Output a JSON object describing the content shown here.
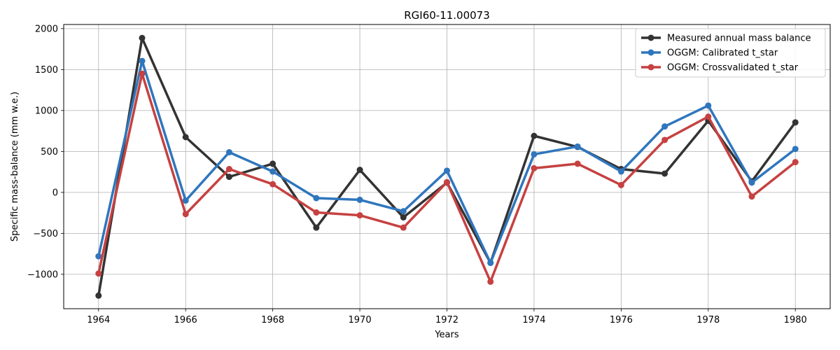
{
  "chart_data": {
    "type": "line",
    "title": "RGI60-11.00073",
    "xlabel": "Years",
    "ylabel": "Specific mass-balance (mm w.e.)",
    "x": [
      1964,
      1965,
      1966,
      1967,
      1968,
      1969,
      1970,
      1971,
      1972,
      1973,
      1974,
      1975,
      1976,
      1977,
      1978,
      1979,
      1980
    ],
    "xlim": [
      1963.2,
      1980.8
    ],
    "ylim": [
      -1420,
      2050
    ],
    "xticks": [
      1964,
      1966,
      1968,
      1970,
      1972,
      1974,
      1976,
      1978,
      1980
    ],
    "yticks": [
      -1000,
      -500,
      0,
      500,
      1000,
      1500,
      2000
    ],
    "ytick_labels": [
      "−1000",
      "−500",
      "0",
      "500",
      "1000",
      "1500",
      "2000"
    ],
    "grid": true,
    "legend_position": "top-right",
    "series": [
      {
        "name": "Measured annual mass balance",
        "color": "#333333",
        "values": [
          -1260,
          1885,
          675,
          190,
          350,
          -430,
          275,
          -305,
          120,
          -860,
          690,
          555,
          285,
          230,
          875,
          135,
          855
        ]
      },
      {
        "name": "OGGM: Calibrated t_star",
        "color": "#2f76bd",
        "values": [
          -780,
          1605,
          -100,
          490,
          255,
          -70,
          -90,
          -230,
          265,
          -860,
          465,
          560,
          255,
          805,
          1060,
          120,
          530
        ]
      },
      {
        "name": "OGGM: Crossvalidated t_star",
        "color": "#c64141",
        "values": [
          -990,
          1450,
          -265,
          285,
          100,
          -245,
          -280,
          -430,
          125,
          -1090,
          295,
          350,
          90,
          640,
          925,
          -50,
          370
        ]
      }
    ]
  }
}
